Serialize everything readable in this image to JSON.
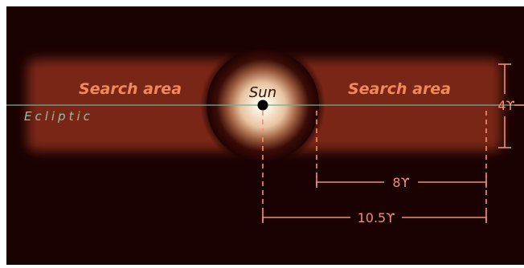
{
  "labels": {
    "search_left": "Search area",
    "search_right": "Search area",
    "sun": "Sun",
    "ecliptic": "Ecliptic",
    "dim_height": "4ϒ",
    "dim_inner": "8ϒ",
    "dim_outer": "10.5ϒ"
  },
  "colors": {
    "background": "#1a0202",
    "search_band": "#7a2614",
    "search_text": "#f08a5c",
    "ecliptic_line": "#6fae9a",
    "ecliptic_text": "#8fbfa8",
    "dimension": "#f09070",
    "sun_core": "#ffffff",
    "sun_glow": "#f4d8b8",
    "sun_dot": "#000000",
    "sun_text": "#2a1408"
  }
}
